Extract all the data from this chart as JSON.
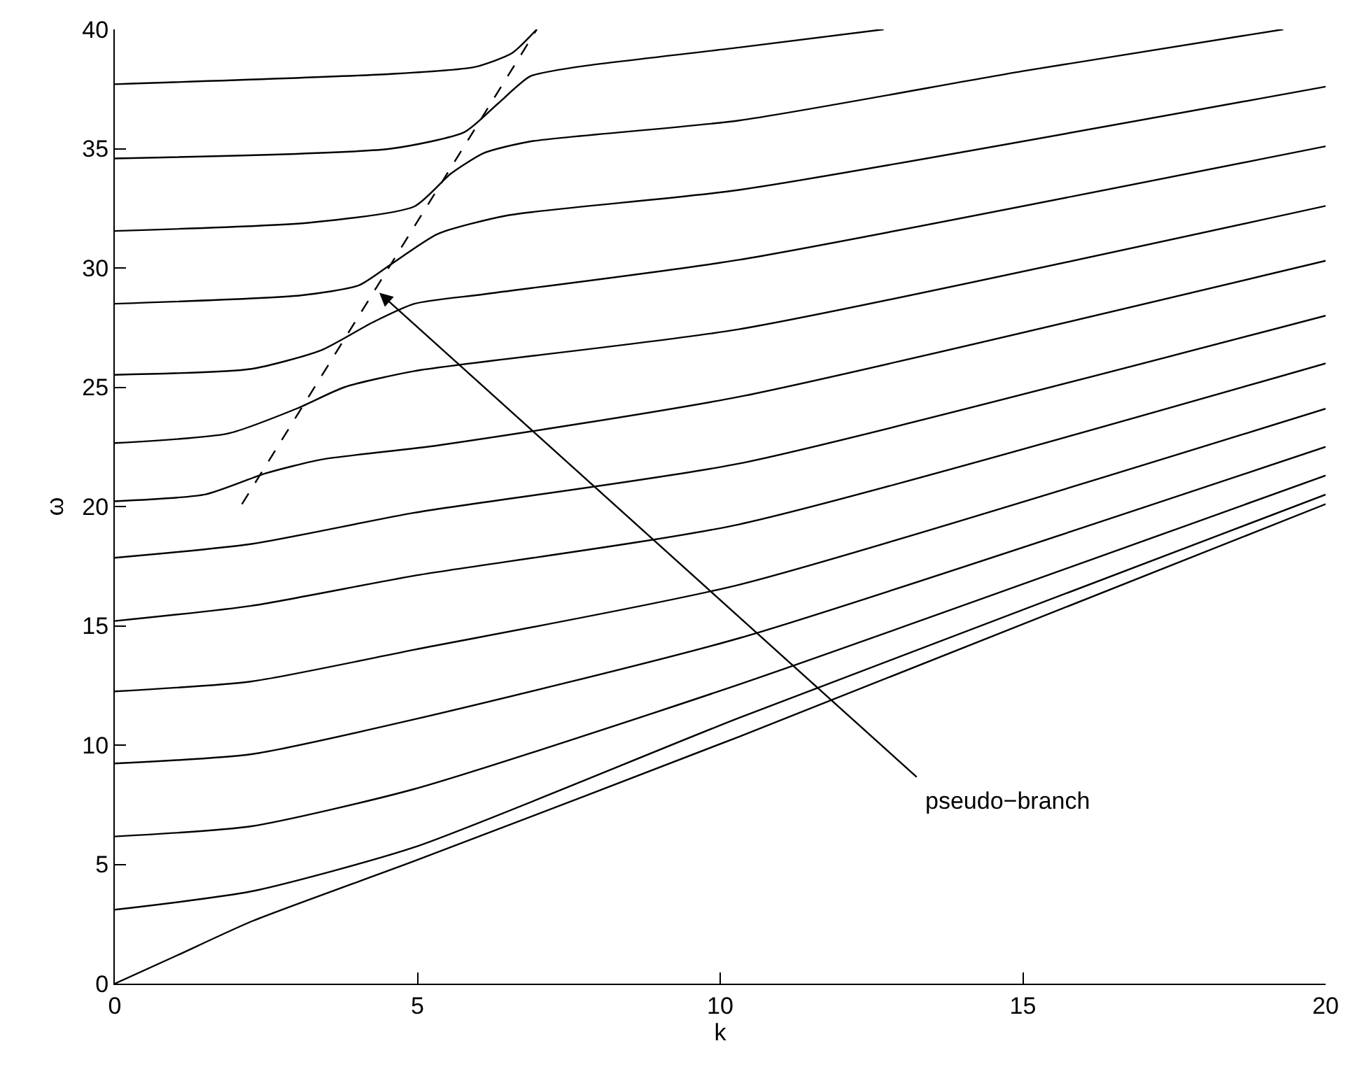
{
  "chart_data": {
    "type": "line",
    "xlabel": "k",
    "ylabel": "ω",
    "xlim": [
      0,
      20
    ],
    "ylim": [
      0,
      40
    ],
    "xticks": [
      0,
      5,
      10,
      15,
      20
    ],
    "yticks": [
      0,
      5,
      10,
      15,
      20,
      25,
      30,
      35,
      40
    ],
    "marker": "none",
    "line_style": "solid",
    "series": [
      {
        "color": "#000000",
        "x": [
          0,
          1,
          2.26,
          4.95,
          10.31,
          20
        ],
        "values": [
          0,
          1.15,
          2.61,
          5.14,
          10.35,
          20.1
        ]
      },
      {
        "color": "#000000",
        "x": [
          0,
          2.26,
          4.95,
          10.31,
          20
        ],
        "values": [
          3.1,
          3.87,
          5.72,
          11.14,
          20.5
        ]
      },
      {
        "color": "#000000",
        "x": [
          0,
          2.26,
          4.95,
          10.31,
          20
        ],
        "values": [
          6.17,
          6.6,
          8.16,
          12.54,
          21.3
        ]
      },
      {
        "color": "#000000",
        "x": [
          0,
          2.26,
          4.95,
          10.31,
          20
        ],
        "values": [
          9.23,
          9.62,
          11.08,
          14.48,
          22.5
        ]
      },
      {
        "color": "#000000",
        "x": [
          0,
          2.26,
          4.95,
          10.31,
          20
        ],
        "values": [
          12.25,
          12.67,
          14.0,
          16.72,
          24.1
        ]
      },
      {
        "color": "#000000",
        "x": [
          0,
          2.26,
          4.95,
          10.31,
          20
        ],
        "values": [
          15.2,
          15.84,
          17.1,
          19.25,
          26.0
        ]
      },
      {
        "color": "#000000",
        "x": [
          0,
          2.26,
          4.95,
          10.31,
          20
        ],
        "values": [
          17.85,
          18.43,
          19.74,
          21.8,
          28.0
        ]
      },
      {
        "color": "#000000",
        "x": [
          0,
          1.5,
          2.49,
          3.41,
          5.33,
          10.31,
          20
        ],
        "values": [
          20.22,
          20.51,
          21.39,
          21.97,
          22.56,
          24.6,
          30.3
        ]
      },
      {
        "color": "#000000",
        "x": [
          0,
          1.87,
          3.02,
          3.79,
          4.95,
          10.31,
          20
        ],
        "values": [
          22.66,
          23.06,
          24.12,
          25.0,
          25.68,
          27.43,
          32.6
        ]
      },
      {
        "color": "#000000",
        "x": [
          0,
          2.26,
          3.41,
          4.26,
          4.95,
          6.1,
          10.31,
          20
        ],
        "values": [
          25.52,
          25.77,
          26.55,
          27.72,
          28.5,
          28.9,
          30.34,
          35.1
        ]
      },
      {
        "color": "#000000",
        "x": [
          0,
          3.07,
          4.03,
          4.56,
          5.33,
          6.48,
          10.31,
          20
        ],
        "values": [
          28.5,
          28.85,
          29.27,
          30.15,
          31.42,
          32.2,
          33.27,
          37.6
        ]
      },
      {
        "color": "#000000",
        "x": [
          0,
          3.22,
          4.95,
          5.55,
          6.1,
          6.86,
          10.31,
          15,
          19.3
        ],
        "values": [
          31.55,
          31.9,
          32.58,
          33.95,
          34.82,
          35.3,
          36.18,
          38.25,
          40
        ]
      },
      {
        "color": "#000000",
        "x": [
          0,
          4.56,
          5.78,
          6.32,
          6.86,
          7.62,
          10.31,
          12.7
        ],
        "values": [
          34.59,
          35.0,
          35.7,
          36.87,
          38.03,
          38.42,
          39.24,
          40
        ]
      },
      {
        "color": "#000000",
        "x": [
          0,
          4.56,
          5.94,
          6.56,
          6.97
        ],
        "values": [
          37.7,
          38.13,
          38.42,
          39.0,
          40
        ]
      },
      {
        "color": "#000000",
        "line_style": "dashed",
        "x": [
          2.1,
          6.97
        ],
        "values": [
          20.1,
          40
        ]
      }
    ],
    "annotations": [
      {
        "text": "pseudo−branch",
        "x": 4.37,
        "y": 28.96
      }
    ]
  }
}
